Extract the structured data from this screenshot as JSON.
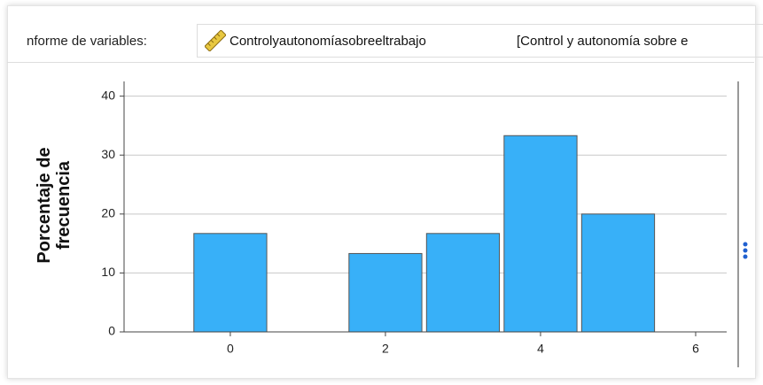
{
  "header": {
    "label": "nforme de variables:",
    "variable": "Controlyautonomíasobreeltrabajo",
    "variable_label": "[Control y autonomía sobre e"
  },
  "chart_data": {
    "type": "bar",
    "ylabel": "Porcentaje de frecuencia",
    "x": [
      0,
      2,
      3,
      4,
      5
    ],
    "values": [
      16.7,
      13.3,
      16.7,
      33.3,
      20
    ],
    "color": "#38b0f8",
    "xlim": [
      -1.37,
      6.4
    ],
    "xticks": [
      0,
      2,
      4,
      6
    ],
    "ylim": [
      0,
      42.5
    ],
    "yticks": [
      0,
      10,
      20,
      30,
      40
    ],
    "grid": true
  }
}
